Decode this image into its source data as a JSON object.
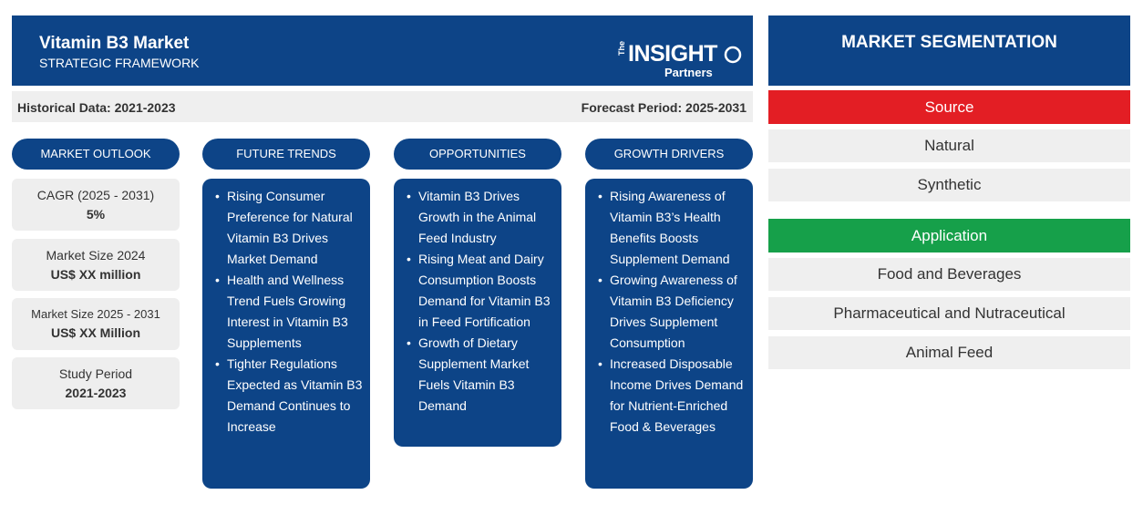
{
  "header": {
    "title": "Vitamin B3 Market",
    "subtitle": "STRATEGIC FRAMEWORK",
    "logo": {
      "the": "The",
      "insight": "INSIGHT",
      "partners": "Partners"
    }
  },
  "dates": {
    "historical": "Historical Data: 2021-2023",
    "forecast": "Forecast Period: 2025-2031"
  },
  "outlook": {
    "heading": "MARKET OUTLOOK",
    "stats": [
      {
        "label": "CAGR (2025 - 2031)",
        "value": "5%"
      },
      {
        "label": "Market Size 2024",
        "value": "US$ XX million"
      },
      {
        "label": "Market Size 2025 - 2031",
        "value": "US$ XX Million"
      },
      {
        "label": "Study Period",
        "value": "2021-2023"
      }
    ]
  },
  "future_trends": {
    "heading": "FUTURE TRENDS",
    "items": [
      "Rising Consumer Preference for Natural Vitamin B3 Drives Market Demand",
      "Health and Wellness Trend Fuels Growing Interest in Vitamin B3 Supplements",
      "Tighter Regulations Expected as Vitamin B3 Demand Continues to Increase"
    ]
  },
  "opportunities": {
    "heading": "OPPORTUNITIES",
    "items": [
      "Vitamin B3 Drives Growth in the Animal Feed Industry",
      "Rising Meat and Dairy Consumption Boosts Demand for Vitamin B3 in Feed Fortification",
      "Growth of Dietary Supplement Market Fuels Vitamin B3 Demand"
    ]
  },
  "growth_drivers": {
    "heading": "GROWTH DRIVERS",
    "items": [
      "Rising Awareness of Vitamin B3’s Health Benefits Boosts Supplement Demand",
      "Growing Awareness of Vitamin B3 Deficiency Drives Supplement Consumption",
      "Increased Disposable Income Drives Demand for Nutrient-Enriched Food & Beverages"
    ]
  },
  "segmentation": {
    "heading": "MARKET SEGMENTATION",
    "categories": [
      {
        "name": "Source",
        "color": "#e31e24",
        "items": [
          "Natural",
          "Synthetic"
        ]
      },
      {
        "name": "Application",
        "color": "#16a04a",
        "items": [
          "Food and Beverages",
          "Pharmaceutical and Nutraceutical",
          "Animal Feed"
        ]
      }
    ]
  },
  "colors": {
    "primary": "#0d4487",
    "panel": "#eeeeee"
  }
}
